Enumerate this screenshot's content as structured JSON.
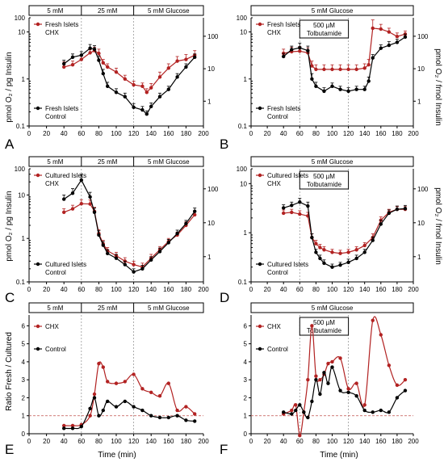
{
  "colors": {
    "chx": "#b22222",
    "control": "#000000"
  },
  "shared": {
    "x_ticks": [
      0,
      20,
      40,
      60,
      80,
      100,
      120,
      140,
      160,
      180,
      200
    ],
    "ylabel_left_top": "pmol O₂ / pg Insulin",
    "ylabel_right_top": "pmol O₂ / frnol Insulin",
    "ylabel_bottom": "Ratio Fresh / Cultured",
    "xlabel": "Time (min)"
  },
  "chart_data": [
    {
      "panel": "A",
      "type": "line",
      "yscale": "log",
      "ylim": [
        0.1,
        20
      ],
      "left_ticks": [
        "0.1",
        "1",
        "10",
        "100"
      ],
      "right_ticks": [
        "1",
        "10",
        "100"
      ],
      "conditions": [
        "5 mM",
        "25 mM",
        "5 mM Glucose"
      ],
      "legend": [
        {
          "series": "chx",
          "line1": "Fresh Islets",
          "line2": "CHX"
        },
        {
          "series": "control",
          "line1": "Fresh Islets",
          "line2": "Control"
        }
      ],
      "series": [
        {
          "key": "chx",
          "x": [
            40,
            50,
            60,
            70,
            75,
            80,
            85,
            90,
            100,
            110,
            120,
            130,
            135,
            140,
            150,
            160,
            170,
            180,
            190
          ],
          "y": [
            1.8,
            2.0,
            2.6,
            3.6,
            4.0,
            3.5,
            2.2,
            1.8,
            1.4,
            1.0,
            0.75,
            0.7,
            0.52,
            0.65,
            1.1,
            1.7,
            2.4,
            2.6,
            3.2
          ],
          "err": [
            0.5,
            0.4,
            0.5,
            0.6,
            0.7,
            0.8,
            0.4,
            0.3,
            0.3,
            0.2,
            0.15,
            0.12,
            0.1,
            0.15,
            0.3,
            0.4,
            0.6,
            0.7,
            0.8
          ]
        },
        {
          "key": "control",
          "x": [
            40,
            50,
            60,
            70,
            75,
            80,
            85,
            90,
            100,
            110,
            120,
            130,
            135,
            140,
            150,
            160,
            170,
            180,
            190
          ],
          "y": [
            2.1,
            2.9,
            3.2,
            4.5,
            4.3,
            2.5,
            1.3,
            0.7,
            0.52,
            0.42,
            0.25,
            0.22,
            0.18,
            0.26,
            0.42,
            0.6,
            1.1,
            1.8,
            2.9
          ],
          "err": [
            0.4,
            0.5,
            0.6,
            0.9,
            0.8,
            0.6,
            0.3,
            0.15,
            0.1,
            0.08,
            0.05,
            0.04,
            0.03,
            0.05,
            0.08,
            0.1,
            0.2,
            0.3,
            0.5
          ]
        }
      ]
    },
    {
      "panel": "B",
      "type": "line",
      "yscale": "log",
      "ylim": [
        0.1,
        20
      ],
      "left_ticks": [
        "0.1",
        "1",
        "10",
        "100"
      ],
      "right_ticks": [
        "1",
        "10",
        "100"
      ],
      "conditions": [
        "5 mM Glucose"
      ],
      "drug_box": [
        "500 µM",
        "Tolbutamide"
      ],
      "legend": [
        {
          "series": "chx",
          "line1": "Fresh Islets",
          "line2": "CHX"
        },
        {
          "series": "control",
          "line1": "Fresh Islets",
          "line2": "Control"
        }
      ],
      "series": [
        {
          "key": "chx",
          "x": [
            40,
            50,
            60,
            70,
            75,
            80,
            90,
            100,
            110,
            120,
            130,
            140,
            145,
            150,
            160,
            170,
            180,
            190
          ],
          "y": [
            3.5,
            3.8,
            3.9,
            3.6,
            1.9,
            1.6,
            1.6,
            1.6,
            1.6,
            1.6,
            1.6,
            1.7,
            2.0,
            12.0,
            11.5,
            10.0,
            8.0,
            9.0
          ],
          "err": [
            0.8,
            0.9,
            1.0,
            1.0,
            0.5,
            0.4,
            0.4,
            0.4,
            0.4,
            0.4,
            0.4,
            0.4,
            0.6,
            6.0,
            3.0,
            2.0,
            1.5,
            1.5
          ]
        },
        {
          "key": "control",
          "x": [
            40,
            50,
            60,
            70,
            75,
            80,
            90,
            100,
            110,
            120,
            130,
            140,
            145,
            150,
            160,
            170,
            180,
            190
          ],
          "y": [
            3.0,
            4.2,
            4.6,
            4.0,
            1.0,
            0.7,
            0.55,
            0.7,
            0.6,
            0.55,
            0.6,
            0.6,
            0.9,
            2.8,
            4.5,
            5.2,
            6.0,
            7.8
          ],
          "err": [
            0.5,
            0.8,
            1.2,
            1.0,
            0.3,
            0.15,
            0.1,
            0.12,
            0.1,
            0.1,
            0.1,
            0.1,
            0.2,
            0.5,
            0.8,
            1.0,
            1.0,
            1.2
          ]
        }
      ]
    },
    {
      "panel": "C",
      "type": "line",
      "yscale": "log",
      "ylim": [
        0.1,
        40
      ],
      "left_ticks": [
        "0.1",
        "1",
        "10",
        "100"
      ],
      "right_ticks": [
        "1",
        "10",
        "100"
      ],
      "conditions": [
        "5 mM",
        "25 mM",
        "5 mM Glucose"
      ],
      "legend": [
        {
          "series": "chx",
          "line1": "Cultured Islets",
          "line2": "CHX"
        },
        {
          "series": "control",
          "line1": "Cultured Islets",
          "line2": "Control"
        }
      ],
      "series": [
        {
          "key": "chx",
          "x": [
            40,
            50,
            60,
            70,
            75,
            80,
            85,
            90,
            100,
            110,
            120,
            130,
            140,
            150,
            160,
            170,
            180,
            190
          ],
          "y": [
            4.0,
            4.8,
            6.3,
            6.2,
            4.2,
            1.3,
            0.75,
            0.52,
            0.4,
            0.3,
            0.25,
            0.22,
            0.35,
            0.55,
            0.85,
            1.2,
            2.0,
            3.5
          ],
          "err": [
            0.8,
            1.0,
            1.5,
            1.5,
            1.0,
            0.3,
            0.15,
            0.1,
            0.08,
            0.06,
            0.05,
            0.05,
            0.08,
            0.1,
            0.15,
            0.2,
            0.4,
            0.7
          ]
        },
        {
          "key": "control",
          "x": [
            40,
            50,
            60,
            70,
            75,
            80,
            85,
            90,
            100,
            110,
            120,
            130,
            140,
            150,
            160,
            170,
            180,
            190
          ],
          "y": [
            8.0,
            11.0,
            22.0,
            9.0,
            4.0,
            1.2,
            0.7,
            0.45,
            0.35,
            0.25,
            0.17,
            0.2,
            0.32,
            0.5,
            0.8,
            1.3,
            2.2,
            4.2
          ],
          "err": [
            2.0,
            3.0,
            8.0,
            2.5,
            1.0,
            0.3,
            0.15,
            0.1,
            0.08,
            0.05,
            0.03,
            0.04,
            0.06,
            0.1,
            0.15,
            0.25,
            0.4,
            0.8
          ]
        }
      ]
    },
    {
      "panel": "D",
      "type": "line",
      "yscale": "log",
      "ylim": [
        0.1,
        20
      ],
      "left_ticks": [
        "0.1",
        "1",
        "10",
        "100"
      ],
      "right_ticks": [
        "1",
        "10",
        "100"
      ],
      "conditions": [
        "5 mM Glucose"
      ],
      "drug_box": [
        "500 µM",
        "Tolbutamide"
      ],
      "legend": [
        {
          "series": "chx",
          "line1": "Cultured Islets",
          "line2": "CHX"
        },
        {
          "series": "control",
          "line1": "Cultured Islets",
          "line2": "Control"
        }
      ],
      "series": [
        {
          "key": "chx",
          "x": [
            40,
            50,
            60,
            70,
            75,
            80,
            85,
            90,
            100,
            110,
            120,
            130,
            140,
            150,
            160,
            170,
            180,
            190
          ],
          "y": [
            2.5,
            2.6,
            2.4,
            2.2,
            0.8,
            0.6,
            0.5,
            0.45,
            0.4,
            0.38,
            0.4,
            0.45,
            0.55,
            0.8,
            1.8,
            2.6,
            3.0,
            3.0
          ],
          "err": [
            0.4,
            0.4,
            0.4,
            0.4,
            0.15,
            0.1,
            0.08,
            0.07,
            0.06,
            0.06,
            0.06,
            0.07,
            0.08,
            0.15,
            0.3,
            0.4,
            0.4,
            0.4
          ]
        },
        {
          "key": "control",
          "x": [
            40,
            50,
            60,
            70,
            75,
            80,
            85,
            90,
            100,
            110,
            120,
            130,
            140,
            150,
            160,
            170,
            180,
            190
          ],
          "y": [
            3.2,
            3.6,
            4.2,
            3.5,
            0.8,
            0.4,
            0.3,
            0.24,
            0.2,
            0.22,
            0.25,
            0.3,
            0.4,
            0.7,
            1.5,
            2.5,
            3.0,
            3.1
          ],
          "err": [
            0.5,
            0.6,
            0.8,
            0.7,
            0.15,
            0.06,
            0.05,
            0.04,
            0.03,
            0.03,
            0.04,
            0.05,
            0.06,
            0.12,
            0.3,
            0.4,
            0.5,
            0.5
          ]
        }
      ]
    },
    {
      "panel": "E",
      "type": "line",
      "yscale": "linear",
      "ylim": [
        0,
        6.6
      ],
      "left_ticks": [
        "0",
        "1",
        "2",
        "3",
        "4",
        "5",
        "6"
      ],
      "ref_line": 1,
      "conditions": [
        "5 mM",
        "25 mM",
        "5 mM Glucose"
      ],
      "legend": [
        {
          "series": "chx",
          "line1": "CHX"
        },
        {
          "series": "control",
          "line1": "Control"
        }
      ],
      "series": [
        {
          "key": "chx",
          "x": [
            40,
            50,
            60,
            70,
            75,
            80,
            85,
            90,
            100,
            110,
            120,
            130,
            140,
            150,
            160,
            170,
            180,
            190
          ],
          "y": [
            0.45,
            0.45,
            0.5,
            1.0,
            2.2,
            3.9,
            3.7,
            2.9,
            2.8,
            2.9,
            3.3,
            2.5,
            2.3,
            2.1,
            2.8,
            1.3,
            1.5,
            1.1
          ]
        },
        {
          "key": "control",
          "x": [
            40,
            50,
            60,
            70,
            75,
            80,
            85,
            90,
            100,
            110,
            120,
            130,
            140,
            150,
            160,
            170,
            180,
            190
          ],
          "y": [
            0.3,
            0.3,
            0.4,
            1.4,
            2.0,
            1.0,
            1.3,
            1.8,
            1.5,
            1.8,
            1.5,
            1.3,
            1.0,
            0.9,
            0.9,
            1.0,
            0.75,
            0.7
          ]
        }
      ]
    },
    {
      "panel": "F",
      "type": "line",
      "yscale": "linear",
      "ylim": [
        0,
        6.6
      ],
      "left_ticks": [
        "0",
        "1",
        "2",
        "3",
        "4",
        "5",
        "6"
      ],
      "ref_line": 1,
      "conditions": [
        "5 mM Glucose"
      ],
      "drug_box": [
        "500 µM",
        "Tolbutamide"
      ],
      "legend": [
        {
          "series": "chx",
          "line1": "CHX"
        },
        {
          "series": "control",
          "line1": "Control"
        }
      ],
      "series": [
        {
          "key": "chx",
          "x": [
            40,
            50,
            55,
            60,
            65,
            70,
            75,
            80,
            85,
            90,
            95,
            100,
            110,
            120,
            130,
            140,
            150,
            160,
            170,
            180,
            190
          ],
          "y": [
            1.1,
            1.3,
            1.6,
            -0.1,
            1.2,
            3.0,
            6.0,
            3.2,
            3.0,
            3.3,
            3.9,
            4.0,
            4.2,
            2.5,
            2.8,
            1.6,
            6.3,
            5.5,
            3.8,
            2.7,
            3.0
          ]
        },
        {
          "key": "control",
          "x": [
            40,
            50,
            55,
            60,
            65,
            70,
            75,
            80,
            85,
            90,
            95,
            100,
            110,
            120,
            130,
            140,
            150,
            160,
            170,
            180,
            190
          ],
          "y": [
            1.2,
            1.1,
            1.3,
            1.6,
            1.2,
            0.9,
            1.8,
            3.0,
            2.2,
            3.4,
            2.8,
            3.7,
            2.4,
            2.3,
            2.1,
            1.3,
            1.2,
            1.3,
            1.2,
            2.0,
            2.4
          ]
        }
      ]
    }
  ]
}
